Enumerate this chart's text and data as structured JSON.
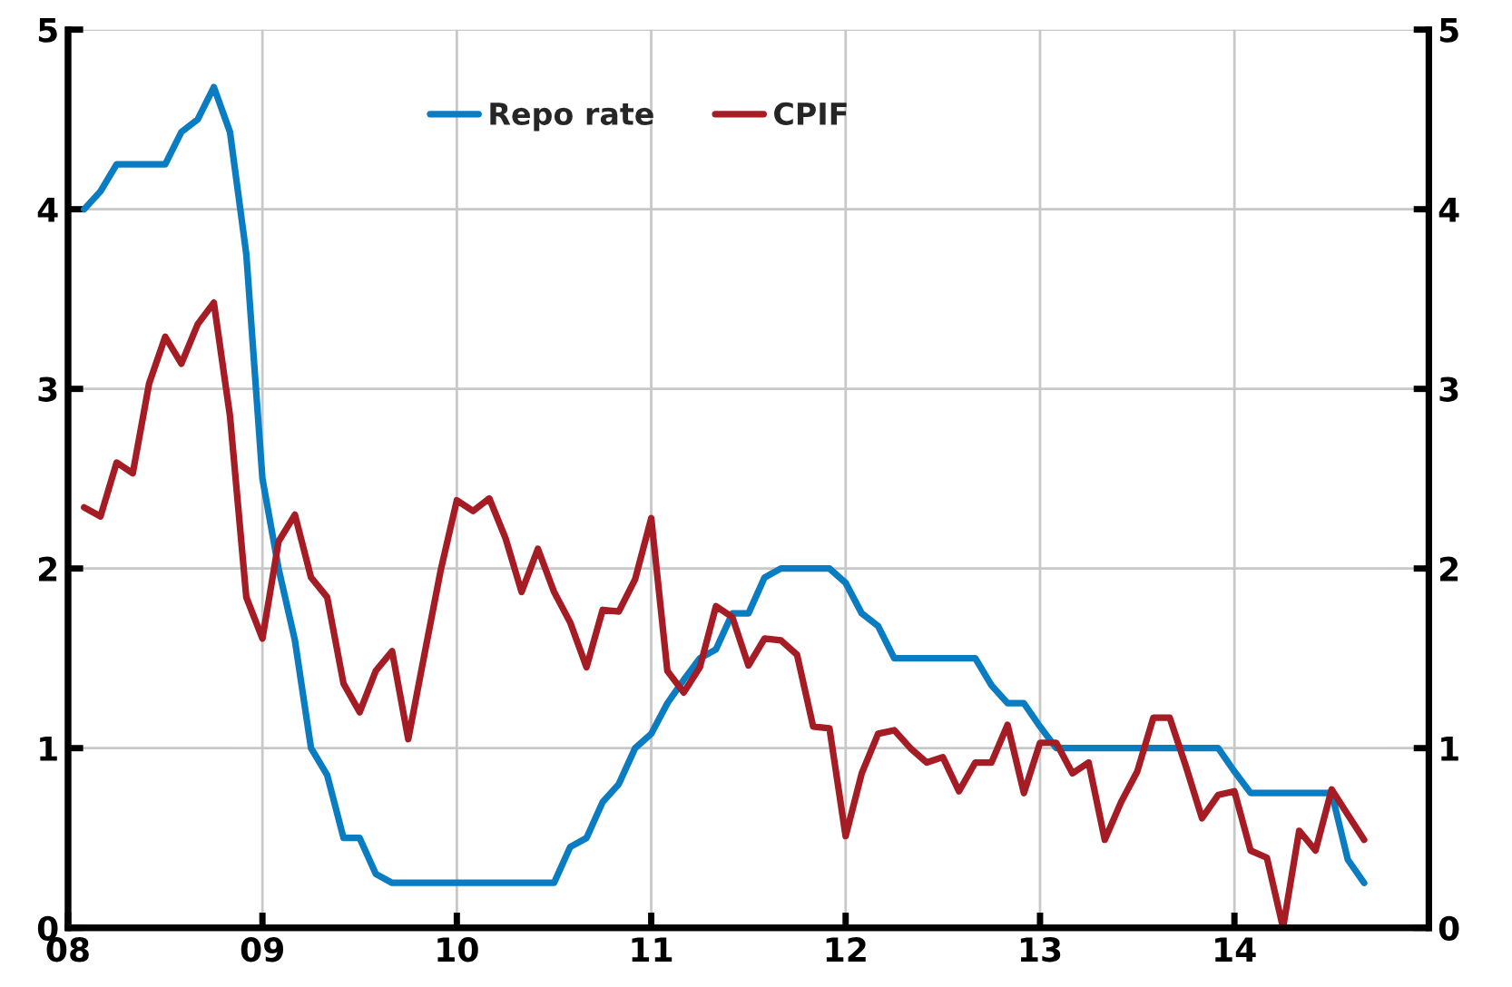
{
  "chart_data": {
    "type": "line",
    "x": [
      2008.083,
      2008.167,
      2008.25,
      2008.333,
      2008.417,
      2008.5,
      2008.583,
      2008.667,
      2008.75,
      2008.833,
      2008.917,
      2009,
      2009.083,
      2009.167,
      2009.25,
      2009.333,
      2009.417,
      2009.5,
      2009.583,
      2009.667,
      2009.75,
      2009.833,
      2009.917,
      2010,
      2010.083,
      2010.167,
      2010.25,
      2010.333,
      2010.417,
      2010.5,
      2010.583,
      2010.667,
      2010.75,
      2010.833,
      2010.917,
      2011,
      2011.083,
      2011.167,
      2011.25,
      2011.333,
      2011.417,
      2011.5,
      2011.583,
      2011.667,
      2011.75,
      2011.833,
      2011.917,
      2012,
      2012.083,
      2012.167,
      2012.25,
      2012.333,
      2012.417,
      2012.5,
      2012.583,
      2012.667,
      2012.75,
      2012.833,
      2012.917,
      2013,
      2013.083,
      2013.167,
      2013.25,
      2013.333,
      2013.417,
      2013.5,
      2013.583,
      2013.667,
      2013.75,
      2013.833,
      2013.917,
      2014,
      2014.083,
      2014.167,
      2014.25,
      2014.333,
      2014.417,
      2014.5,
      2014.583,
      2014.667
    ],
    "series": [
      {
        "name": "Repo rate",
        "color": "#0a7cc1",
        "values": [
          4.0,
          4.1,
          4.25,
          4.25,
          4.25,
          4.25,
          4.43,
          4.5,
          4.68,
          4.43,
          3.75,
          2.5,
          2.0,
          1.6,
          1.0,
          0.85,
          0.5,
          0.5,
          0.3,
          0.25,
          0.25,
          0.25,
          0.25,
          0.25,
          0.25,
          0.25,
          0.25,
          0.25,
          0.25,
          0.25,
          0.45,
          0.5,
          0.7,
          0.8,
          1.0,
          1.08,
          1.25,
          1.38,
          1.5,
          1.55,
          1.75,
          1.75,
          1.95,
          2.0,
          2.0,
          2.0,
          2.0,
          1.92,
          1.75,
          1.68,
          1.5,
          1.5,
          1.5,
          1.5,
          1.5,
          1.5,
          1.35,
          1.25,
          1.25,
          1.12,
          1.0,
          1.0,
          1.0,
          1.0,
          1.0,
          1.0,
          1.0,
          1.0,
          1.0,
          1.0,
          1.0,
          0.87,
          0.75,
          0.75,
          0.75,
          0.75,
          0.75,
          0.75,
          0.38,
          0.25
        ]
      },
      {
        "name": "CPIF",
        "color": "#a51c24",
        "values": [
          2.34,
          2.29,
          2.59,
          2.53,
          3.03,
          3.29,
          3.14,
          3.36,
          3.48,
          2.85,
          1.84,
          1.61,
          2.15,
          2.3,
          1.95,
          1.84,
          1.36,
          1.2,
          1.43,
          1.54,
          1.05,
          1.52,
          1.99,
          2.38,
          2.32,
          2.39,
          2.17,
          1.87,
          2.11,
          1.87,
          1.7,
          1.45,
          1.77,
          1.76,
          1.94,
          2.28,
          1.43,
          1.31,
          1.45,
          1.79,
          1.73,
          1.46,
          1.61,
          1.6,
          1.52,
          1.12,
          1.11,
          0.51,
          0.86,
          1.08,
          1.1,
          1.0,
          0.92,
          0.95,
          0.76,
          0.92,
          0.92,
          1.13,
          0.75,
          1.03,
          1.03,
          0.86,
          0.92,
          0.49,
          0.7,
          0.87,
          1.17,
          1.17,
          0.9,
          0.61,
          0.74,
          0.76,
          0.43,
          0.39,
          0.0,
          0.54,
          0.43,
          0.77,
          0.63,
          0.49
        ]
      }
    ],
    "xlim": [
      2008,
      2015
    ],
    "xticks": [
      {
        "value": 2008,
        "label": "08"
      },
      {
        "value": 2009,
        "label": "09"
      },
      {
        "value": 2010,
        "label": "10"
      },
      {
        "value": 2011,
        "label": "11"
      },
      {
        "value": 2012,
        "label": "12"
      },
      {
        "value": 2013,
        "label": "13"
      },
      {
        "value": 2014,
        "label": "14"
      }
    ],
    "ylim": [
      0,
      5
    ],
    "yticks": [
      0,
      1,
      2,
      3,
      4,
      5
    ],
    "y2lim": [
      0,
      5
    ],
    "y2ticks": [
      0,
      1,
      2,
      3,
      4,
      5
    ],
    "grid": true,
    "legend": "top",
    "marker": "none",
    "line_style": "solid"
  }
}
